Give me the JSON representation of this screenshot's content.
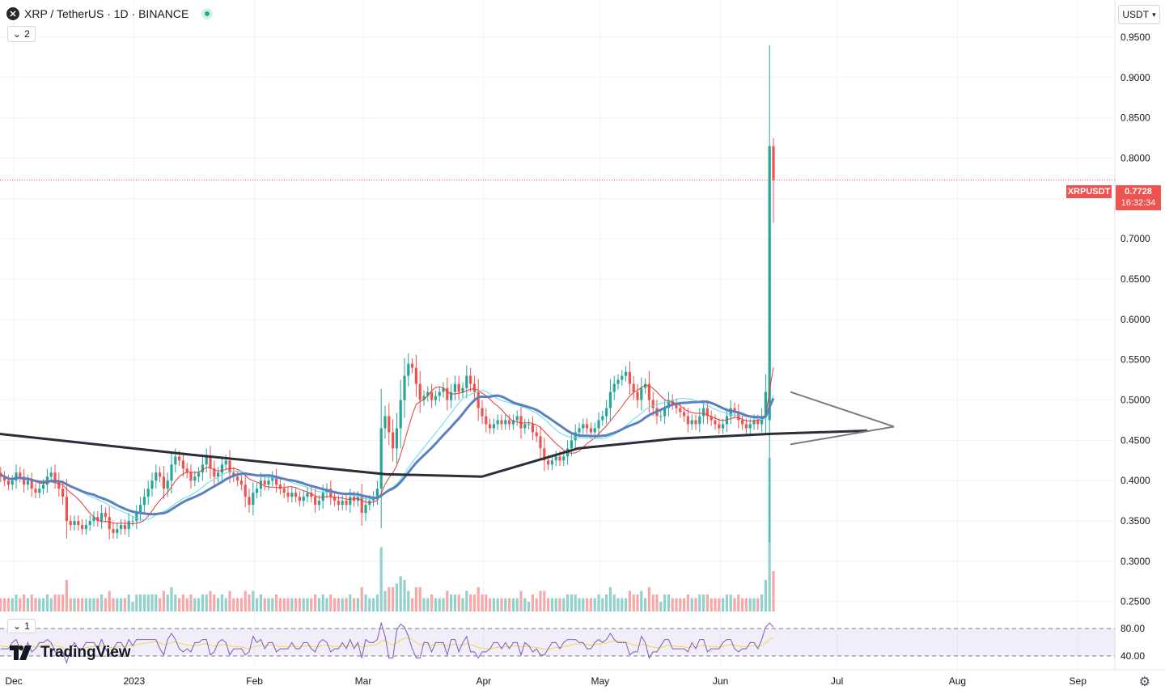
{
  "header": {
    "symbol_icon": "x-icon",
    "title": "XRP / TetherUS · 1D · BINANCE",
    "collapse_count": "2"
  },
  "currency_selector": "USDT",
  "last_price": {
    "symbol": "XRPUSDT",
    "value": "0.7728",
    "countdown": "16:32:34",
    "color": "#ef5350"
  },
  "rsi_pane": {
    "collapse_count": "1",
    "levels": [
      "80.00",
      "40.00"
    ]
  },
  "branding": "TradingView",
  "colors": {
    "up": "#26a69a",
    "down": "#ef5350",
    "ma_short": "#e53935",
    "ma_cyan": "#5ce1e6",
    "ma_blue": "#5b7fbf",
    "ma_long": "#2a2e39",
    "rsi_line": "#7e57c2",
    "rsi_ma": "#f5d742"
  },
  "chart_data": {
    "type": "candlestick",
    "y_axis_ticks": [
      "0.9500",
      "0.9000",
      "0.8500",
      "0.8000",
      "0.7500",
      "0.7000",
      "0.6500",
      "0.6000",
      "0.5500",
      "0.5000",
      "0.4500",
      "0.4000",
      "0.3500",
      "0.3000",
      "0.2500"
    ],
    "ylim": [
      0.2357,
      0.9962
    ],
    "x_axis_ticks": [
      {
        "label": "Dec",
        "day": 0
      },
      {
        "label": "2023",
        "day": 31
      },
      {
        "label": "Feb",
        "day": 62
      },
      {
        "label": "Mar",
        "day": 90
      },
      {
        "label": "Apr",
        "day": 121
      },
      {
        "label": "May",
        "day": 151
      },
      {
        "label": "Jun",
        "day": 182
      },
      {
        "label": "Jul",
        "day": 212
      },
      {
        "label": "Aug",
        "day": 243
      },
      {
        "label": "Sep",
        "day": 274
      }
    ],
    "candles_close": [
      0.41,
      0.405,
      0.4,
      0.395,
      0.4,
      0.41,
      0.405,
      0.395,
      0.4,
      0.39,
      0.385,
      0.39,
      0.395,
      0.405,
      0.41,
      0.4,
      0.39,
      0.38,
      0.35,
      0.345,
      0.35,
      0.345,
      0.34,
      0.345,
      0.35,
      0.355,
      0.35,
      0.36,
      0.355,
      0.34,
      0.335,
      0.34,
      0.345,
      0.34,
      0.35,
      0.35,
      0.36,
      0.37,
      0.38,
      0.39,
      0.4,
      0.41,
      0.405,
      0.39,
      0.4,
      0.42,
      0.43,
      0.425,
      0.415,
      0.41,
      0.4,
      0.405,
      0.41,
      0.42,
      0.43,
      0.415,
      0.405,
      0.41,
      0.42,
      0.425,
      0.41,
      0.405,
      0.4,
      0.395,
      0.38,
      0.37,
      0.385,
      0.39,
      0.4,
      0.395,
      0.4,
      0.405,
      0.395,
      0.39,
      0.385,
      0.38,
      0.385,
      0.38,
      0.375,
      0.38,
      0.385,
      0.38,
      0.37,
      0.375,
      0.385,
      0.39,
      0.38,
      0.375,
      0.37,
      0.375,
      0.37,
      0.38,
      0.375,
      0.38,
      0.36,
      0.37,
      0.375,
      0.38,
      0.39,
      0.465,
      0.48,
      0.46,
      0.44,
      0.465,
      0.5,
      0.53,
      0.545,
      0.54,
      0.52,
      0.5,
      0.505,
      0.51,
      0.5,
      0.505,
      0.51,
      0.515,
      0.5,
      0.51,
      0.52,
      0.51,
      0.515,
      0.53,
      0.52,
      0.51,
      0.49,
      0.48,
      0.47,
      0.465,
      0.47,
      0.475,
      0.47,
      0.475,
      0.47,
      0.475,
      0.48,
      0.465,
      0.47,
      0.47,
      0.46,
      0.455,
      0.44,
      0.425,
      0.42,
      0.425,
      0.43,
      0.425,
      0.43,
      0.44,
      0.45,
      0.46,
      0.465,
      0.47,
      0.465,
      0.46,
      0.465,
      0.475,
      0.48,
      0.49,
      0.51,
      0.52,
      0.525,
      0.53,
      0.535,
      0.52,
      0.51,
      0.5,
      0.515,
      0.52,
      0.5,
      0.49,
      0.48,
      0.48,
      0.49,
      0.5,
      0.495,
      0.49,
      0.485,
      0.48,
      0.47,
      0.475,
      0.47,
      0.48,
      0.49,
      0.48,
      0.475,
      0.47,
      0.465,
      0.47,
      0.48,
      0.49,
      0.485,
      0.475,
      0.47,
      0.465,
      0.47,
      0.475,
      0.47,
      0.48,
      0.51,
      0.815,
      0.7728
    ],
    "rsi_levels": [
      80,
      40
    ],
    "overlays": [
      "MA short (red)",
      "MA (cyan)",
      "MA (blue, thick)",
      "MA long (black, thick)",
      "Triangle trendlines"
    ]
  }
}
